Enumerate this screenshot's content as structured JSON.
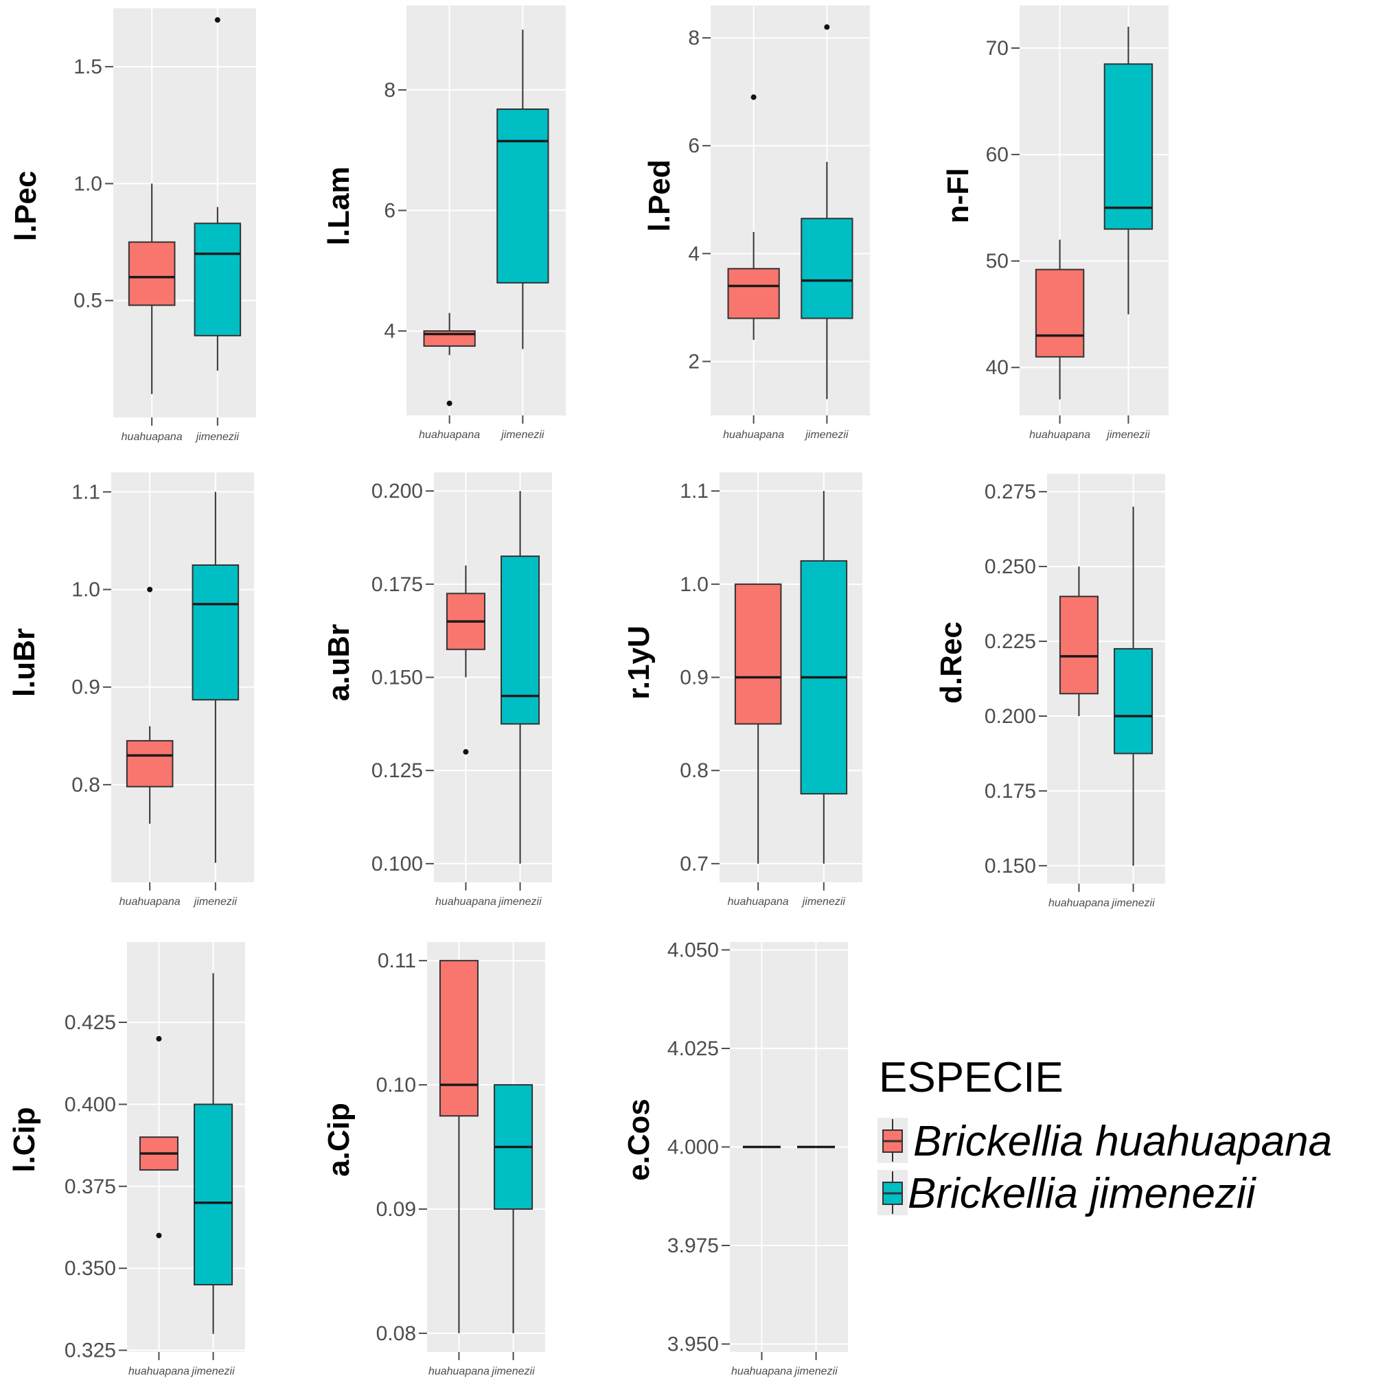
{
  "colors": {
    "huahuapana": "#F8766D",
    "jimenezii": "#00BFC4",
    "panel": "#EBEBEB",
    "grid": "#FFFFFF"
  },
  "legend": {
    "title": "ESPECIE",
    "items": [
      {
        "label": "Brickellia huahuapana",
        "key": "huahuapana"
      },
      {
        "label": "Brickellia jimenezii",
        "key": "jimenezii"
      }
    ]
  },
  "chart_data": [
    {
      "type": "boxplot",
      "ylabel": "l.Pec",
      "categories": [
        "huahuapana",
        "jimenezii"
      ],
      "ylim": [
        0.0,
        1.75
      ],
      "ticks": [
        0.5,
        1.0,
        1.5
      ],
      "tick_labels": [
        "0.5",
        "1.0",
        "1.5"
      ],
      "boxes": [
        {
          "category": "huahuapana",
          "min": 0.1,
          "q1": 0.48,
          "median": 0.6,
          "q3": 0.75,
          "max": 1.0,
          "outliers": []
        },
        {
          "category": "jimenezii",
          "min": 0.2,
          "q1": 0.35,
          "median": 0.7,
          "q3": 0.83,
          "max": 0.9,
          "outliers": [
            1.7
          ]
        }
      ]
    },
    {
      "type": "boxplot",
      "ylabel": "l.Lam",
      "categories": [
        "huahuapana",
        "jimenezii"
      ],
      "ylim": [
        2.6,
        9.4
      ],
      "ticks": [
        4,
        6,
        8
      ],
      "tick_labels": [
        "4",
        "6",
        "8"
      ],
      "boxes": [
        {
          "category": "huahuapana",
          "min": 3.6,
          "q1": 3.75,
          "median": 3.95,
          "q3": 4.0,
          "max": 4.3,
          "outliers": [
            2.8
          ]
        },
        {
          "category": "jimenezii",
          "min": 3.7,
          "q1": 4.8,
          "median": 7.15,
          "q3": 7.68,
          "max": 9.0,
          "outliers": []
        }
      ]
    },
    {
      "type": "boxplot",
      "ylabel": "l.Ped",
      "categories": [
        "huahuapana",
        "jimenezii"
      ],
      "ylim": [
        1.0,
        8.6
      ],
      "ticks": [
        2,
        4,
        6,
        8
      ],
      "tick_labels": [
        "2",
        "4",
        "6",
        "8"
      ],
      "boxes": [
        {
          "category": "huahuapana",
          "min": 2.4,
          "q1": 2.8,
          "median": 3.4,
          "q3": 3.72,
          "max": 4.4,
          "outliers": [
            6.9
          ]
        },
        {
          "category": "jimenezii",
          "min": 1.3,
          "q1": 2.8,
          "median": 3.5,
          "q3": 4.65,
          "max": 5.7,
          "outliers": [
            8.2
          ]
        }
      ]
    },
    {
      "type": "boxplot",
      "ylabel": "n-Fl",
      "categories": [
        "huahuapana",
        "jimenezii"
      ],
      "ylim": [
        35.5,
        74.0
      ],
      "ticks": [
        40,
        50,
        60,
        70
      ],
      "tick_labels": [
        "40",
        "50",
        "60",
        "70"
      ],
      "boxes": [
        {
          "category": "huahuapana",
          "min": 37,
          "q1": 41,
          "median": 43,
          "q3": 49.2,
          "max": 52,
          "outliers": []
        },
        {
          "category": "jimenezii",
          "min": 45,
          "q1": 53,
          "median": 55,
          "q3": 68.5,
          "max": 72,
          "outliers": []
        }
      ]
    },
    {
      "type": "boxplot",
      "ylabel": "l.uBr",
      "categories": [
        "huahuapana",
        "jimenezii"
      ],
      "ylim": [
        0.7,
        1.12
      ],
      "ticks": [
        0.8,
        0.9,
        1.0,
        1.1
      ],
      "tick_labels": [
        "0.8",
        "0.9",
        "1.0",
        "1.1"
      ],
      "boxes": [
        {
          "category": "huahuapana",
          "min": 0.76,
          "q1": 0.798,
          "median": 0.83,
          "q3": 0.845,
          "max": 0.86,
          "outliers": [
            1.0
          ]
        },
        {
          "category": "jimenezii",
          "min": 0.72,
          "q1": 0.887,
          "median": 0.985,
          "q3": 1.025,
          "max": 1.1,
          "outliers": []
        }
      ]
    },
    {
      "type": "boxplot",
      "ylabel": "a.uBr",
      "categories": [
        "huahuapana",
        "jimenezii"
      ],
      "ylim": [
        0.095,
        0.205
      ],
      "ticks": [
        0.1,
        0.125,
        0.15,
        0.175,
        0.2
      ],
      "tick_labels": [
        "0.100",
        "0.125",
        "0.150",
        "0.175",
        "0.200"
      ],
      "boxes": [
        {
          "category": "huahuapana",
          "min": 0.15,
          "q1": 0.1575,
          "median": 0.165,
          "q3": 0.1725,
          "max": 0.18,
          "outliers": [
            0.13
          ]
        },
        {
          "category": "jimenezii",
          "min": 0.1,
          "q1": 0.1375,
          "median": 0.145,
          "q3": 0.1825,
          "max": 0.2,
          "outliers": []
        }
      ]
    },
    {
      "type": "boxplot",
      "ylabel": "r.1yU",
      "categories": [
        "huahuapana",
        "jimenezii"
      ],
      "ylim": [
        0.68,
        1.12
      ],
      "ticks": [
        0.7,
        0.8,
        0.9,
        1.0,
        1.1
      ],
      "tick_labels": [
        "0.7",
        "0.8",
        "0.9",
        "1.0",
        "1.1"
      ],
      "boxes": [
        {
          "category": "huahuapana",
          "min": 0.7,
          "q1": 0.85,
          "median": 0.9,
          "q3": 1.0,
          "max": 1.0,
          "outliers": []
        },
        {
          "category": "jimenezii",
          "min": 0.7,
          "q1": 0.775,
          "median": 0.9,
          "q3": 1.025,
          "max": 1.1,
          "outliers": []
        }
      ]
    },
    {
      "type": "boxplot",
      "ylabel": "d.Rec",
      "categories": [
        "huahuapana",
        "jimenezii"
      ],
      "ylim": [
        0.144,
        0.281
      ],
      "ticks": [
        0.15,
        0.175,
        0.2,
        0.225,
        0.25,
        0.275
      ],
      "tick_labels": [
        "0.150",
        "0.175",
        "0.200",
        "0.225",
        "0.250",
        "0.275"
      ],
      "boxes": [
        {
          "category": "huahuapana",
          "min": 0.2,
          "q1": 0.2075,
          "median": 0.22,
          "q3": 0.24,
          "max": 0.25,
          "outliers": []
        },
        {
          "category": "jimenezii",
          "min": 0.15,
          "q1": 0.1875,
          "median": 0.2,
          "q3": 0.2225,
          "max": 0.27,
          "outliers": []
        }
      ]
    },
    {
      "type": "boxplot",
      "ylabel": "l.Cip",
      "categories": [
        "huahuapana",
        "jimenezii"
      ],
      "ylim": [
        0.3245,
        0.4495
      ],
      "ticks": [
        0.325,
        0.35,
        0.375,
        0.4,
        0.425
      ],
      "tick_labels": [
        "0.325",
        "0.350",
        "0.375",
        "0.400",
        "0.425"
      ],
      "boxes": [
        {
          "category": "huahuapana",
          "min": 0.38,
          "q1": 0.38,
          "median": 0.385,
          "q3": 0.39,
          "max": 0.39,
          "outliers": [
            0.42,
            0.36
          ]
        },
        {
          "category": "jimenezii",
          "min": 0.33,
          "q1": 0.345,
          "median": 0.37,
          "q3": 0.4,
          "max": 0.44,
          "outliers": []
        }
      ]
    },
    {
      "type": "boxplot",
      "ylabel": "a.Cip",
      "categories": [
        "huahuapana",
        "jimenezii"
      ],
      "ylim": [
        0.0785,
        0.1115
      ],
      "ticks": [
        0.08,
        0.09,
        0.1,
        0.11
      ],
      "tick_labels": [
        "0.08",
        "0.09",
        "0.10",
        "0.11"
      ],
      "boxes": [
        {
          "category": "huahuapana",
          "min": 0.08,
          "q1": 0.0975,
          "median": 0.1,
          "q3": 0.11,
          "max": 0.11,
          "outliers": []
        },
        {
          "category": "jimenezii",
          "min": 0.08,
          "q1": 0.09,
          "median": 0.095,
          "q3": 0.1,
          "max": 0.1,
          "outliers": []
        }
      ]
    },
    {
      "type": "boxplot",
      "ylabel": "e.Cos",
      "categories": [
        "huahuapana",
        "jimenezii"
      ],
      "ylim": [
        3.948,
        4.052
      ],
      "ticks": [
        3.95,
        3.975,
        4.0,
        4.025,
        4.05
      ],
      "tick_labels": [
        "3.950",
        "3.975",
        "4.000",
        "4.025",
        "4.050"
      ],
      "boxes": [
        {
          "category": "huahuapana",
          "min": 4.0,
          "q1": 4.0,
          "median": 4.0,
          "q3": 4.0,
          "max": 4.0,
          "outliers": []
        },
        {
          "category": "jimenezii",
          "min": 4.0,
          "q1": 4.0,
          "median": 4.0,
          "q3": 4.0,
          "max": 4.0,
          "outliers": []
        }
      ]
    }
  ]
}
